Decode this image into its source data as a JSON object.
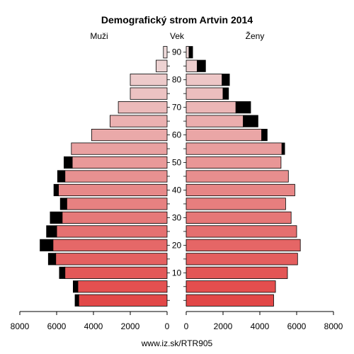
{
  "chart_data": {
    "type": "bar",
    "title": "Demografický strom Artvin 2014",
    "left_label": "Muži",
    "center_label": "Vek",
    "right_label": "Ženy",
    "footer": "www.iz.sk/RTR905",
    "xlim": [
      0,
      8000
    ],
    "x_ticks": [
      0,
      2000,
      4000,
      6000,
      8000
    ],
    "age_ticks": [
      10,
      20,
      30,
      40,
      50,
      60,
      70,
      80,
      90
    ],
    "age_groups": [
      "0-4",
      "5-9",
      "10-14",
      "15-19",
      "20-24",
      "25-29",
      "30-34",
      "35-39",
      "40-44",
      "45-49",
      "50-54",
      "55-59",
      "60-64",
      "65-69",
      "70-74",
      "75-79",
      "80-84",
      "85-89",
      "90+"
    ],
    "series": [
      {
        "name": "Muži",
        "values": [
          4800,
          4850,
          5550,
          6050,
          6200,
          6000,
          5700,
          5450,
          5900,
          5550,
          5150,
          5200,
          4100,
          3100,
          2650,
          2000,
          2000,
          600,
          200
        ],
        "excess": [
          200,
          250,
          300,
          400,
          700,
          550,
          650,
          350,
          250,
          400,
          450,
          0,
          0,
          0,
          0,
          0,
          0,
          0,
          0
        ]
      },
      {
        "name": "Ženy",
        "values": [
          4750,
          4850,
          5500,
          6050,
          6200,
          6000,
          5700,
          5400,
          5900,
          5550,
          5150,
          5200,
          4100,
          3100,
          2700,
          2000,
          1950,
          600,
          150
        ],
        "excess": [
          0,
          0,
          0,
          0,
          0,
          0,
          0,
          0,
          0,
          0,
          0,
          150,
          300,
          800,
          800,
          300,
          400,
          450,
          200
        ]
      }
    ]
  }
}
